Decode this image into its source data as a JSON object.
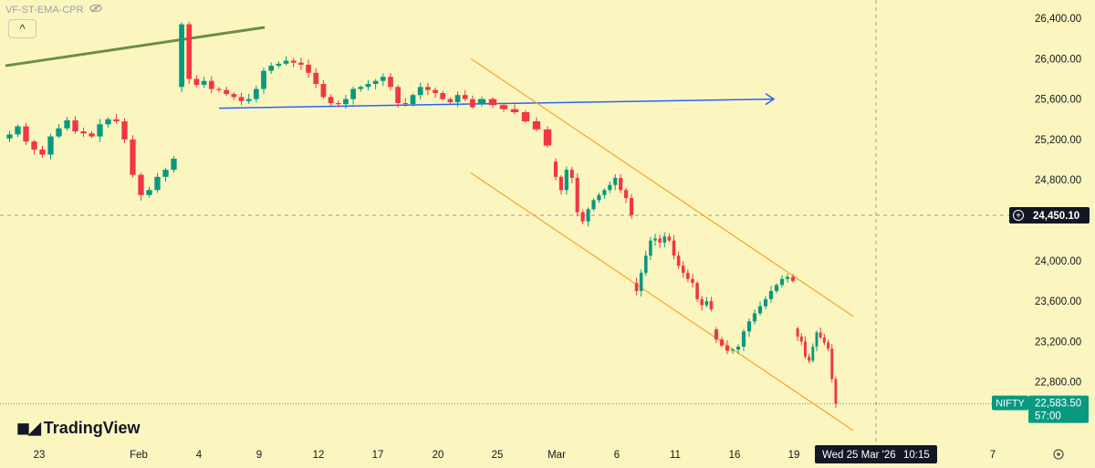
{
  "indicator_label": "VF-ST-EMA-CPR",
  "collapse_glyph": "^",
  "logo_text": "TradingView",
  "colors": {
    "background": "#fbf6bf",
    "up": "#089981",
    "down": "#f23645",
    "blue_line": "#2962ff",
    "green_line": "#6c8e47",
    "channel": "#f5a623"
  },
  "chart_data": {
    "type": "candlestick",
    "symbol": "NIFTY",
    "y_range": [
      22400,
      26500
    ],
    "y_ticks": [
      "26,400.00",
      "26,000.00",
      "25,600.00",
      "25,200.00",
      "24,800.00",
      "24,000.00",
      "23,600.00",
      "23,200.00",
      "22,800.00"
    ],
    "y_tick_values": [
      26400,
      26000,
      25600,
      25200,
      24800,
      24000,
      23600,
      23200,
      22800
    ],
    "x_ticks": [
      "23",
      "Feb",
      "4",
      "9",
      "12",
      "17",
      "20",
      "25",
      "Mar",
      "6",
      "11",
      "16",
      "19",
      "7"
    ],
    "crosshair": {
      "price_label": "24,450.10",
      "price": 24450.1,
      "time_label": "Wed 25 Mar '26",
      "time_value": "10:15"
    },
    "last_price": {
      "symbol": "NIFTY",
      "price": "22,583.50",
      "countdown": "57:00",
      "value": 22583.5
    },
    "trendlines": [
      {
        "name": "blue-horizontal-ray",
        "from": [
          "2026-02-05",
          25510
        ],
        "to": [
          "2026-03-20",
          25600
        ],
        "arrow": true
      },
      {
        "name": "green-resistance-line",
        "from": [
          "2026-01-20",
          25930
        ],
        "to": [
          "2026-02-07",
          26310
        ]
      },
      {
        "name": "channel-upper",
        "from": [
          "2026-02-23",
          26000
        ],
        "to": [
          "2026-03-26",
          23450
        ]
      },
      {
        "name": "channel-lower",
        "from": [
          "2026-02-23",
          24870
        ],
        "to": [
          "2026-03-26",
          22320
        ]
      }
    ],
    "segments": [
      {
        "period": "Jan 20 – Jan 30",
        "start": 25210,
        "path": [
          25250,
          25330,
          25180,
          25100,
          25050,
          25230,
          25310,
          25390,
          25280,
          25260,
          25230,
          25350,
          25400,
          25380,
          25200,
          24850,
          24650,
          24700,
          24830,
          24900,
          25010
        ]
      },
      {
        "period": "Feb 1 – Feb 24",
        "start": 25720,
        "path": [
          26340,
          25800,
          25740,
          25780,
          25700,
          25690,
          25650,
          25620,
          25580,
          25600,
          25700,
          25880,
          25930,
          25950,
          25980,
          25960,
          25940,
          25860,
          25750,
          25620,
          25560,
          25550,
          25600,
          25700,
          25720,
          25750,
          25780,
          25820,
          25720,
          25560,
          25550,
          25640,
          25720,
          25690,
          25660,
          25600,
          25570,
          25640,
          25600,
          25520
        ]
      },
      {
        "period": "Feb 25 – Feb 27",
        "start": 25560,
        "path": [
          25600,
          25540,
          25500,
          25470,
          25380,
          25300,
          25140
        ]
      },
      {
        "period": "Mar 2 – Mar 6",
        "start": 24980,
        "path": [
          24830,
          24700,
          24900,
          24820,
          24480,
          24390,
          24510,
          24600,
          24650,
          24700,
          24750,
          24820,
          24700,
          24620,
          24450
        ]
      },
      {
        "period": "Mar 9 – Mar 13",
        "start": 23780,
        "path": [
          23700,
          23880,
          24050,
          24200,
          24220,
          24180,
          24240,
          24200,
          24050,
          23950,
          23880,
          23820,
          23780,
          23620,
          23560,
          23600,
          23520
        ]
      },
      {
        "period": "Mar 16 – Mar 20",
        "start": 23320,
        "path": [
          23220,
          23160,
          23110,
          23120,
          23150,
          23300,
          23400,
          23480,
          23550,
          23620,
          23700,
          23760,
          23820,
          23840,
          23800
        ]
      },
      {
        "period": "Mar 23 – Mar 25",
        "start": 23330,
        "path": [
          23250,
          23200,
          23050,
          23010,
          23150,
          23290,
          23240,
          23190,
          23130,
          22830,
          22583.5
        ]
      }
    ]
  }
}
